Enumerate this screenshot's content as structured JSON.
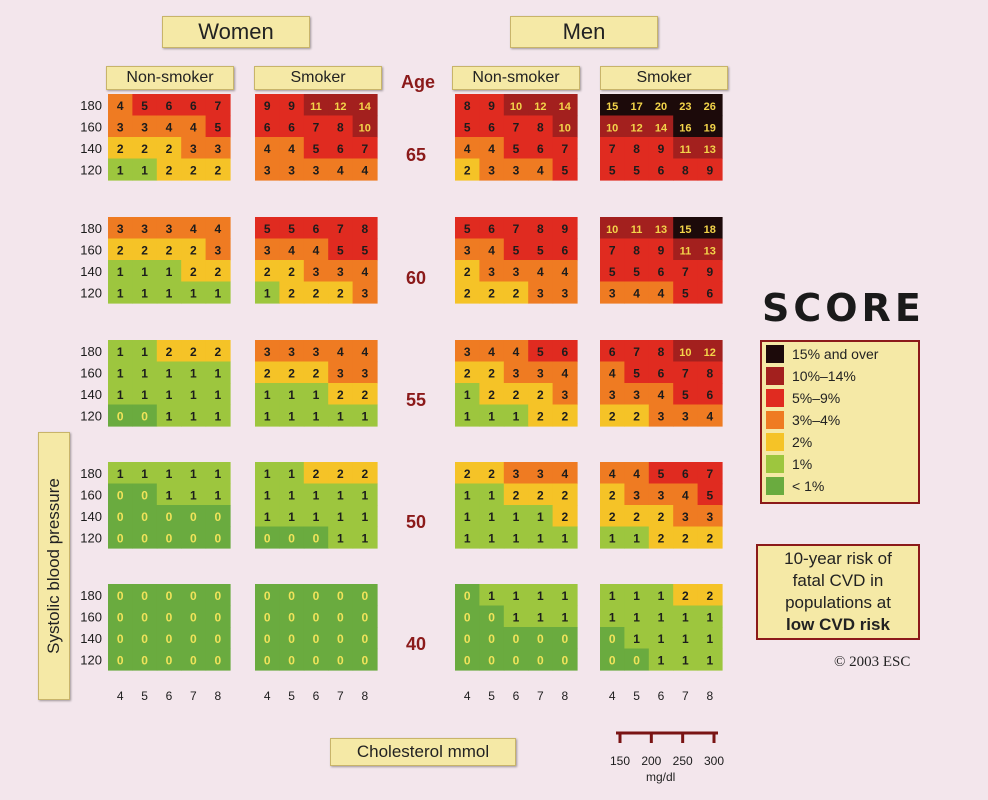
{
  "headers": {
    "women": "Women",
    "men": "Men",
    "non_smoker": "Non-smoker",
    "smoker": "Smoker",
    "age": "Age",
    "sbp": "Systolic blood pressure",
    "cholesterol": "Cholesterol mmol",
    "mgdl_unit": "mg/dl"
  },
  "logo": "SCORE",
  "legend": [
    {
      "label": "15% and over",
      "color": "#1c0a0a"
    },
    {
      "label": "10%–14%",
      "color": "#a3201e"
    },
    {
      "label": "5%–9%",
      "color": "#e02b20"
    },
    {
      "label": "3%–4%",
      "color": "#ef7b22"
    },
    {
      "label": "2%",
      "color": "#f5c327"
    },
    {
      "label": "1%",
      "color": "#9dc63e"
    },
    {
      "label": "< 1%",
      "color": "#6aab3f"
    }
  ],
  "risk_note": [
    "10-year risk of",
    "fatal CVD in",
    "populations at",
    "low CVD risk"
  ],
  "copyright": "© 2003 ESC",
  "chart_data": {
    "type": "heatmap",
    "title": "",
    "xlabel": "Cholesterol mmol",
    "ylabel": "Systolic blood pressure",
    "cholesterol_mmol": [
      4,
      5,
      6,
      7,
      8
    ],
    "cholesterol_mgdl": [
      150,
      200,
      250,
      300
    ],
    "sbp": [
      180,
      160,
      140,
      120
    ],
    "ages": [
      65,
      60,
      55,
      50,
      40
    ],
    "groups": [
      {
        "sex": "Women",
        "smoking": "Non-smoker",
        "grids": {
          "65": [
            [
              4,
              5,
              6,
              6,
              7
            ],
            [
              3,
              3,
              4,
              4,
              5
            ],
            [
              2,
              2,
              2,
              3,
              3
            ],
            [
              1,
              1,
              2,
              2,
              2
            ]
          ],
          "60": [
            [
              3,
              3,
              3,
              4,
              4
            ],
            [
              2,
              2,
              2,
              2,
              3
            ],
            [
              1,
              1,
              1,
              2,
              2
            ],
            [
              1,
              1,
              1,
              1,
              1
            ]
          ],
          "55": [
            [
              1,
              1,
              2,
              2,
              2
            ],
            [
              1,
              1,
              1,
              1,
              1
            ],
            [
              1,
              1,
              1,
              1,
              1
            ],
            [
              0,
              0,
              1,
              1,
              1
            ]
          ],
          "50": [
            [
              1,
              1,
              1,
              1,
              1
            ],
            [
              0,
              0,
              1,
              1,
              1
            ],
            [
              0,
              0,
              0,
              0,
              0
            ],
            [
              0,
              0,
              0,
              0,
              0
            ]
          ],
          "40": [
            [
              0,
              0,
              0,
              0,
              0
            ],
            [
              0,
              0,
              0,
              0,
              0
            ],
            [
              0,
              0,
              0,
              0,
              0
            ],
            [
              0,
              0,
              0,
              0,
              0
            ]
          ]
        }
      },
      {
        "sex": "Women",
        "smoking": "Smoker",
        "grids": {
          "65": [
            [
              9,
              9,
              11,
              12,
              14
            ],
            [
              6,
              6,
              7,
              8,
              10
            ],
            [
              4,
              4,
              5,
              6,
              7
            ],
            [
              3,
              3,
              3,
              4,
              4
            ]
          ],
          "60": [
            [
              5,
              5,
              6,
              7,
              8
            ],
            [
              3,
              4,
              4,
              5,
              5
            ],
            [
              2,
              2,
              3,
              3,
              4
            ],
            [
              1,
              2,
              2,
              2,
              3
            ]
          ],
          "55": [
            [
              3,
              3,
              3,
              4,
              4
            ],
            [
              2,
              2,
              2,
              3,
              3
            ],
            [
              1,
              1,
              1,
              2,
              2
            ],
            [
              1,
              1,
              1,
              1,
              1
            ]
          ],
          "50": [
            [
              1,
              1,
              2,
              2,
              2
            ],
            [
              1,
              1,
              1,
              1,
              1
            ],
            [
              1,
              1,
              1,
              1,
              1
            ],
            [
              0,
              0,
              0,
              1,
              1
            ]
          ],
          "40": [
            [
              0,
              0,
              0,
              0,
              0
            ],
            [
              0,
              0,
              0,
              0,
              0
            ],
            [
              0,
              0,
              0,
              0,
              0
            ],
            [
              0,
              0,
              0,
              0,
              0
            ]
          ]
        }
      },
      {
        "sex": "Men",
        "smoking": "Non-smoker",
        "grids": {
          "65": [
            [
              8,
              9,
              10,
              12,
              14
            ],
            [
              5,
              6,
              7,
              8,
              10
            ],
            [
              4,
              4,
              5,
              6,
              7
            ],
            [
              2,
              3,
              3,
              4,
              5
            ]
          ],
          "60": [
            [
              5,
              6,
              7,
              8,
              9
            ],
            [
              3,
              4,
              5,
              5,
              6
            ],
            [
              2,
              3,
              3,
              4,
              4
            ],
            [
              2,
              2,
              2,
              3,
              3
            ]
          ],
          "55": [
            [
              3,
              4,
              4,
              5,
              6
            ],
            [
              2,
              2,
              3,
              3,
              4
            ],
            [
              1,
              2,
              2,
              2,
              3
            ],
            [
              1,
              1,
              1,
              2,
              2
            ]
          ],
          "50": [
            [
              2,
              2,
              3,
              3,
              4
            ],
            [
              1,
              1,
              2,
              2,
              2
            ],
            [
              1,
              1,
              1,
              1,
              2
            ],
            [
              1,
              1,
              1,
              1,
              1
            ]
          ],
          "40": [
            [
              0,
              1,
              1,
              1,
              1
            ],
            [
              0,
              0,
              1,
              1,
              1
            ],
            [
              0,
              0,
              0,
              0,
              0
            ],
            [
              0,
              0,
              0,
              0,
              0
            ]
          ]
        }
      },
      {
        "sex": "Men",
        "smoking": "Smoker",
        "grids": {
          "65": [
            [
              15,
              17,
              20,
              23,
              26
            ],
            [
              10,
              12,
              14,
              16,
              19
            ],
            [
              7,
              8,
              9,
              11,
              13
            ],
            [
              5,
              5,
              6,
              8,
              9
            ]
          ],
          "60": [
            [
              10,
              11,
              13,
              15,
              18
            ],
            [
              7,
              8,
              9,
              11,
              13
            ],
            [
              5,
              5,
              6,
              7,
              9
            ],
            [
              3,
              4,
              4,
              5,
              6
            ]
          ],
          "55": [
            [
              6,
              7,
              8,
              10,
              12
            ],
            [
              4,
              5,
              6,
              7,
              8
            ],
            [
              3,
              3,
              4,
              5,
              6
            ],
            [
              2,
              2,
              3,
              3,
              4
            ]
          ],
          "50": [
            [
              4,
              4,
              5,
              6,
              7
            ],
            [
              2,
              3,
              3,
              4,
              5
            ],
            [
              2,
              2,
              2,
              3,
              3
            ],
            [
              1,
              1,
              2,
              2,
              2
            ]
          ],
          "40": [
            [
              1,
              1,
              1,
              2,
              2
            ],
            [
              1,
              1,
              1,
              1,
              1
            ],
            [
              0,
              1,
              1,
              1,
              1
            ],
            [
              0,
              0,
              1,
              1,
              1
            ]
          ]
        }
      }
    ]
  }
}
